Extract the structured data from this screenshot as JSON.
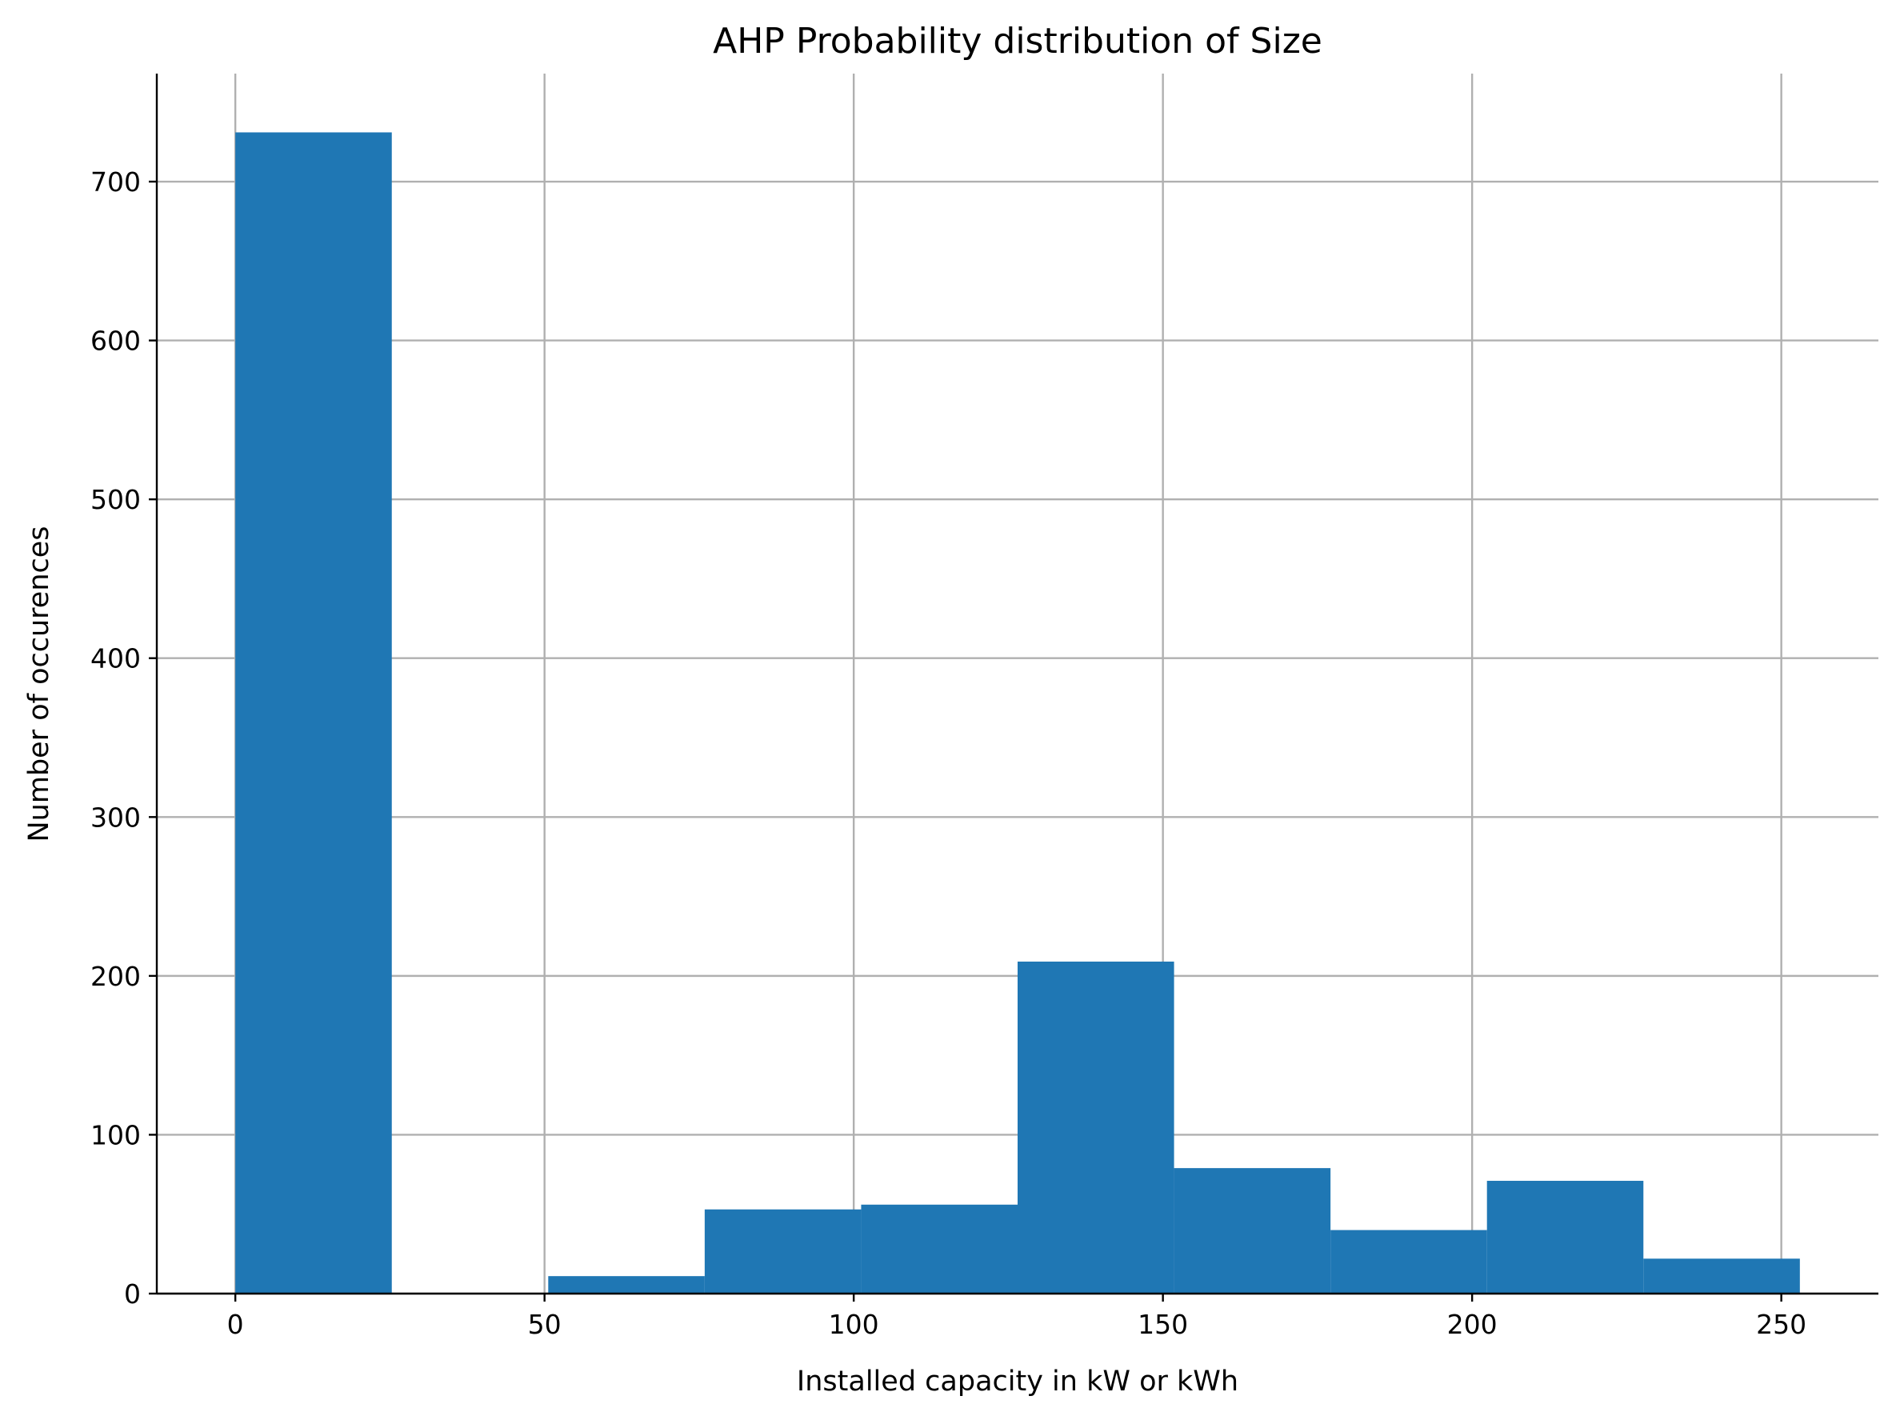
{
  "chart_data": {
    "type": "bar",
    "subtype": "histogram",
    "title": "AHP Probability distribution of Size",
    "xlabel": "Installed capacity in kW or kWh",
    "ylabel": "Number of occurences",
    "xlim": [
      -12.7,
      265.7
    ],
    "ylim": [
      0,
      768
    ],
    "xticks": [
      0,
      50,
      100,
      150,
      200,
      250
    ],
    "yticks": [
      0,
      100,
      200,
      300,
      400,
      500,
      600,
      700
    ],
    "grid": true,
    "legend": "none",
    "bar_color": "#1f77b4",
    "bins": [
      {
        "x0": 0,
        "x1": 25.3,
        "value": 731
      },
      {
        "x0": 25.3,
        "x1": 50.6,
        "value": 0
      },
      {
        "x0": 50.6,
        "x1": 75.9,
        "value": 11
      },
      {
        "x0": 75.9,
        "x1": 101.2,
        "value": 53
      },
      {
        "x0": 101.2,
        "x1": 126.5,
        "value": 56
      },
      {
        "x0": 126.5,
        "x1": 151.8,
        "value": 209
      },
      {
        "x0": 151.8,
        "x1": 177.1,
        "value": 79
      },
      {
        "x0": 177.1,
        "x1": 202.4,
        "value": 40
      },
      {
        "x0": 202.4,
        "x1": 227.7,
        "value": 71
      },
      {
        "x0": 227.7,
        "x1": 253,
        "value": 22
      }
    ]
  }
}
